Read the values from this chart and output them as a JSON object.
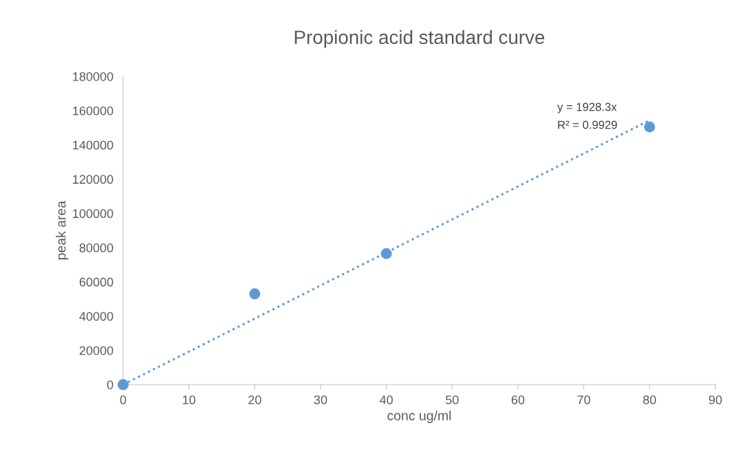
{
  "chart_data": {
    "type": "scatter",
    "title": "Propionic acid standard curve",
    "xlabel": "conc ug/ml",
    "ylabel": "peak area",
    "series": [
      {
        "color": "#5b9bd5",
        "x": [
          0,
          20,
          40,
          80
        ],
        "values": [
          0,
          53000,
          76500,
          150500
        ],
        "marker": "circle"
      },
      {
        "type": "line",
        "color": "#5b9bd5",
        "x": [
          0,
          80
        ],
        "values": [
          0,
          154300
        ],
        "line_style": "dotted",
        "marker": "none"
      }
    ],
    "annotations": [
      "y = 1928.3x",
      "R² = 0.9929"
    ],
    "xlim": [
      0,
      90
    ],
    "xticks": [
      0,
      10,
      20,
      30,
      40,
      50,
      60,
      70,
      80,
      90
    ],
    "ylim": [
      0,
      180000
    ],
    "yticks": [
      0,
      20000,
      40000,
      60000,
      80000,
      100000,
      120000,
      140000,
      160000,
      180000
    ],
    "grid": false,
    "legend": false
  }
}
